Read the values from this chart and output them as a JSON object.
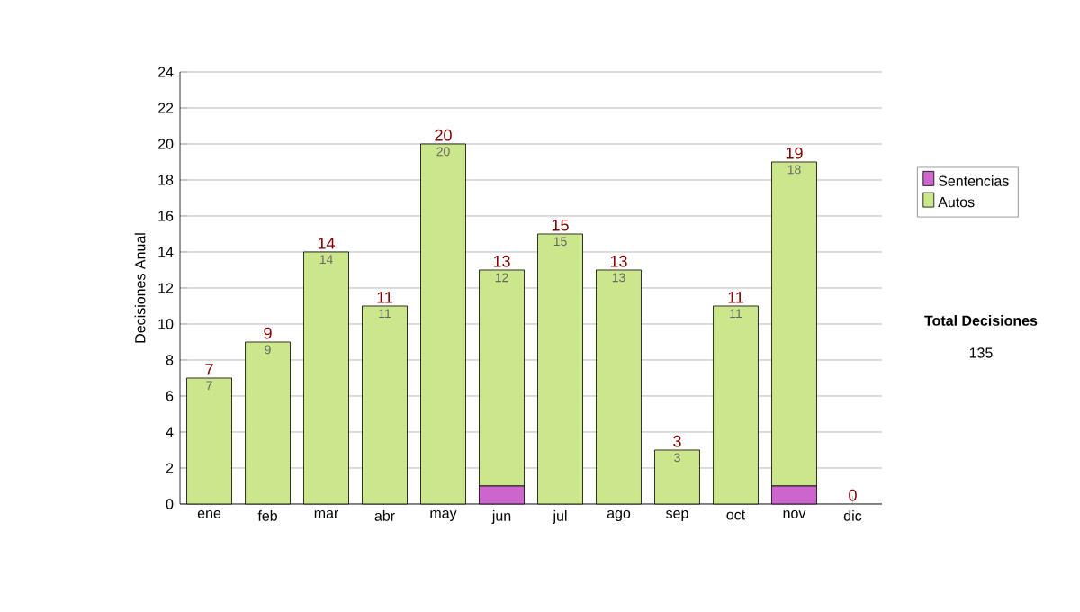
{
  "chart_data": {
    "type": "bar",
    "stacked": true,
    "ylabel": "Decisiones Anual",
    "categories": [
      "ene",
      "feb",
      "mar",
      "abr",
      "may",
      "jun",
      "jul",
      "ago",
      "sep",
      "oct",
      "nov",
      "dic"
    ],
    "series": [
      {
        "name": "Sentencias",
        "color": "#cc66cc",
        "values": [
          0,
          0,
          0,
          0,
          0,
          1,
          0,
          0,
          0,
          0,
          1,
          0
        ]
      },
      {
        "name": "Autos",
        "color": "#cce68c",
        "values": [
          7,
          9,
          14,
          11,
          20,
          12,
          15,
          13,
          3,
          11,
          18,
          0
        ],
        "value_labels": [
          "7",
          "9",
          "14",
          "11",
          "20",
          "12",
          "15",
          "13",
          "3",
          "11",
          "18",
          null
        ]
      }
    ],
    "totals": [
      "7",
      "9",
      "14",
      "11",
      "20",
      "13",
      "15",
      "13",
      "3",
      "11",
      "19",
      "0"
    ],
    "ylim": [
      0,
      24
    ],
    "yticks": [
      0,
      2,
      4,
      6,
      8,
      10,
      12,
      14,
      16,
      18,
      20,
      22,
      24
    ],
    "grid": "y",
    "legend": "right",
    "annotations": [
      "Total Decisiones",
      "135"
    ]
  }
}
